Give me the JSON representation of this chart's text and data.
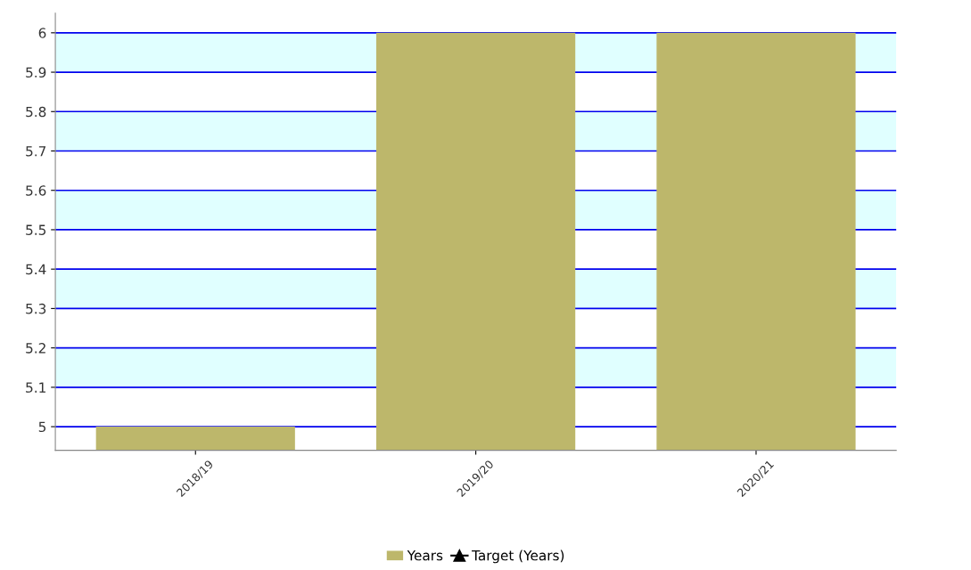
{
  "chart_data": {
    "type": "bar",
    "categories": [
      "2018/19",
      "2019/20",
      "2020/21"
    ],
    "series": [
      {
        "name": "Years",
        "color": "#bdb76b",
        "values": [
          5,
          6,
          6
        ]
      },
      {
        "name": "Target (Years)",
        "type": "line",
        "color": "#000000",
        "marker": "triangle",
        "values": [
          null,
          null,
          null
        ]
      }
    ],
    "ylim": [
      4.94,
      6.05
    ],
    "yticks": [
      5,
      5.1,
      5.2,
      5.3,
      5.4,
      5.5,
      5.6,
      5.7,
      5.8,
      5.9,
      6
    ],
    "bands": [
      {
        "axis": "y",
        "from": 5.1,
        "to": 5.2,
        "color": "#e0ffff"
      },
      {
        "axis": "y",
        "from": 5.3,
        "to": 5.4,
        "color": "#e0ffff"
      },
      {
        "axis": "y",
        "from": 5.5,
        "to": 5.6,
        "color": "#e0ffff"
      },
      {
        "axis": "y",
        "from": 5.7,
        "to": 5.8,
        "color": "#e0ffff"
      },
      {
        "axis": "y",
        "from": 5.9,
        "to": 6,
        "color": "#e0ffff"
      }
    ],
    "grid": "y",
    "legend": "bottom"
  }
}
